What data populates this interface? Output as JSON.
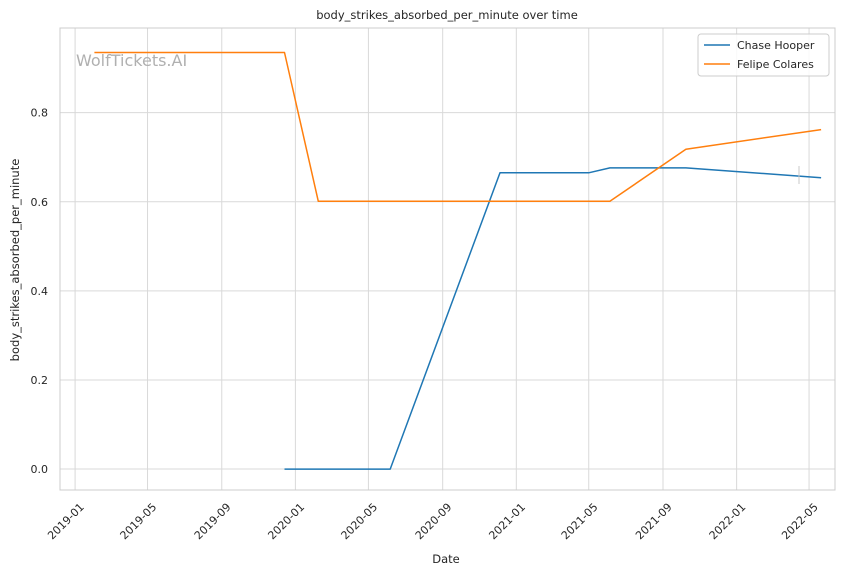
{
  "chart_data": {
    "type": "line",
    "title": "body_strikes_absorbed_per_minute over time",
    "xlabel": "Date",
    "ylabel": "body_strikes_absorbed_per_minute",
    "watermark": "WolfTickets.AI",
    "x_ticks": [
      "2019-01",
      "2019-05",
      "2019-09",
      "2020-01",
      "2020-05",
      "2020-09",
      "2021-01",
      "2021-05",
      "2021-09",
      "2022-01",
      "2022-05"
    ],
    "y_ticks": [
      "0.0",
      "0.2",
      "0.4",
      "0.6",
      "0.8"
    ],
    "xlim": [
      "2018-12-07",
      "2022-06-13"
    ],
    "ylim": [
      -0.047,
      0.99
    ],
    "grid": true,
    "legend_position": "top-right",
    "series": [
      {
        "name": "Chase Hooper",
        "color": "#1f77b4",
        "points": [
          {
            "x": "2019-12-14",
            "y": 0.0
          },
          {
            "x": "2020-06-06",
            "y": 0.0
          },
          {
            "x": "2020-12-05",
            "y": 0.665
          },
          {
            "x": "2021-05-01",
            "y": 0.665
          },
          {
            "x": "2021-06-05",
            "y": 0.676
          },
          {
            "x": "2021-10-09",
            "y": 0.676
          },
          {
            "x": "2022-05-21",
            "y": 0.654
          }
        ]
      },
      {
        "name": "Felipe Colares",
        "color": "#ff7f0e",
        "points": [
          {
            "x": "2019-02-02",
            "y": 0.935
          },
          {
            "x": "2019-12-14",
            "y": 0.935
          },
          {
            "x": "2020-02-08",
            "y": 0.601
          },
          {
            "x": "2021-06-05",
            "y": 0.601
          },
          {
            "x": "2021-10-09",
            "y": 0.718
          },
          {
            "x": "2022-05-21",
            "y": 0.762
          }
        ]
      }
    ]
  }
}
